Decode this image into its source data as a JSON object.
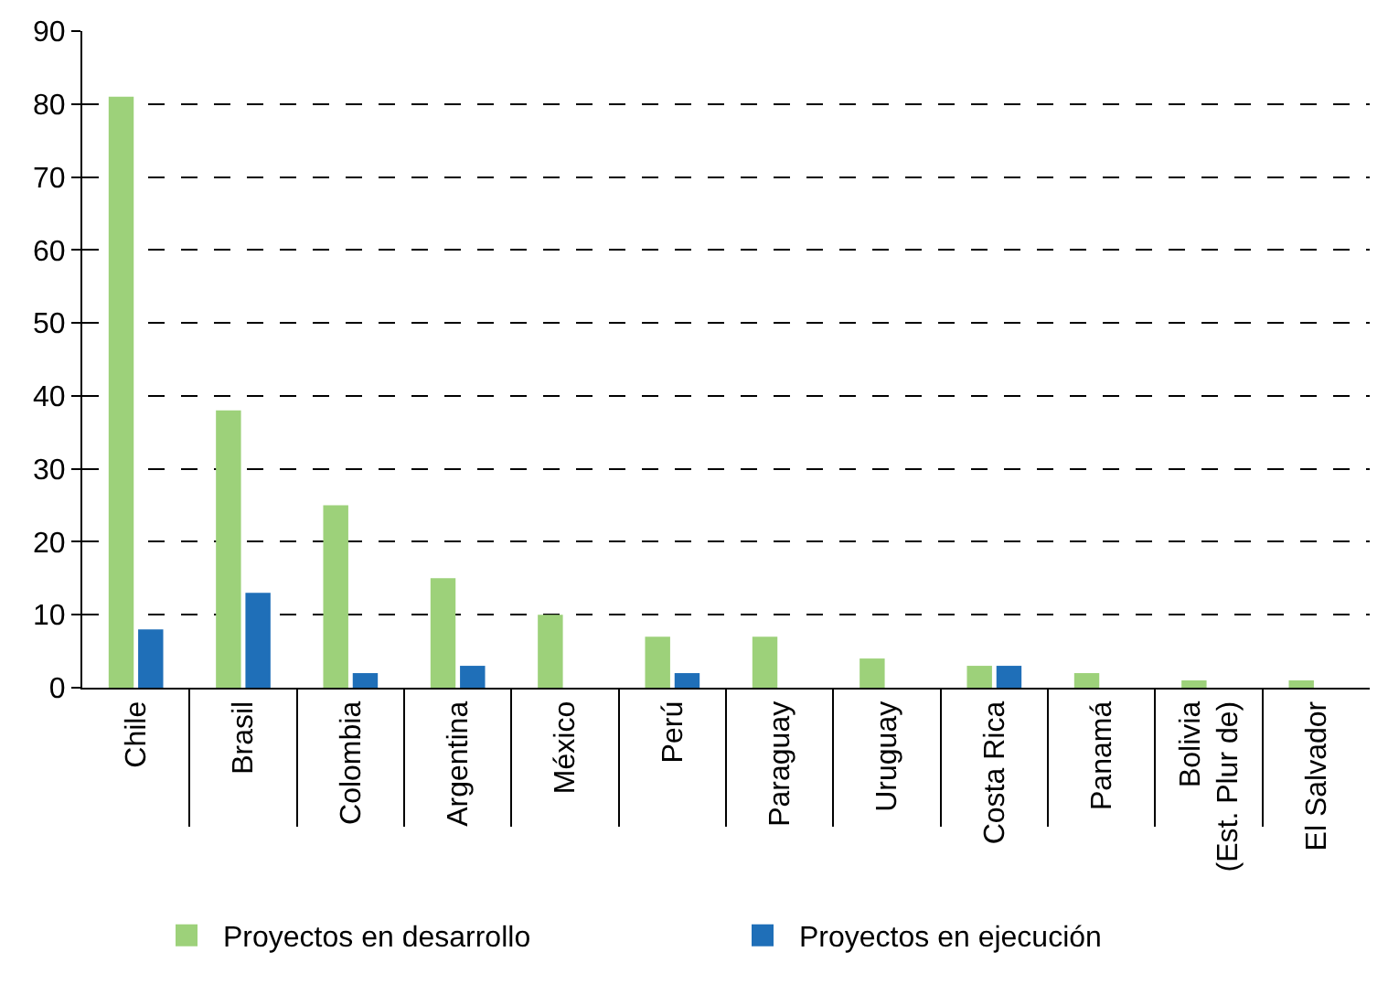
{
  "chart_data": {
    "type": "bar",
    "categories": [
      "Chile",
      "Brasil",
      "Colombia",
      "Argentina",
      "México",
      "Perú",
      "Paraguay",
      "Uruguay",
      "Costa Rica",
      "Panamá",
      "Bolivia\n(Est. Plur de)",
      "El Salvador"
    ],
    "series": [
      {
        "name": "Proyectos en desarrollo",
        "color": "#9dd17a",
        "values": [
          81,
          38,
          25,
          15,
          10,
          7,
          7,
          4,
          3,
          2,
          1,
          1
        ]
      },
      {
        "name": "Proyectos en ejecución",
        "color": "#1f6fb8",
        "values": [
          8,
          13,
          2,
          3,
          null,
          2,
          null,
          null,
          3,
          null,
          null,
          null
        ]
      }
    ],
    "ylim": [
      0,
      90
    ],
    "yticks": [
      0,
      10,
      20,
      30,
      40,
      50,
      60,
      70,
      80,
      90
    ],
    "grid": "y",
    "legend": "bottom"
  }
}
